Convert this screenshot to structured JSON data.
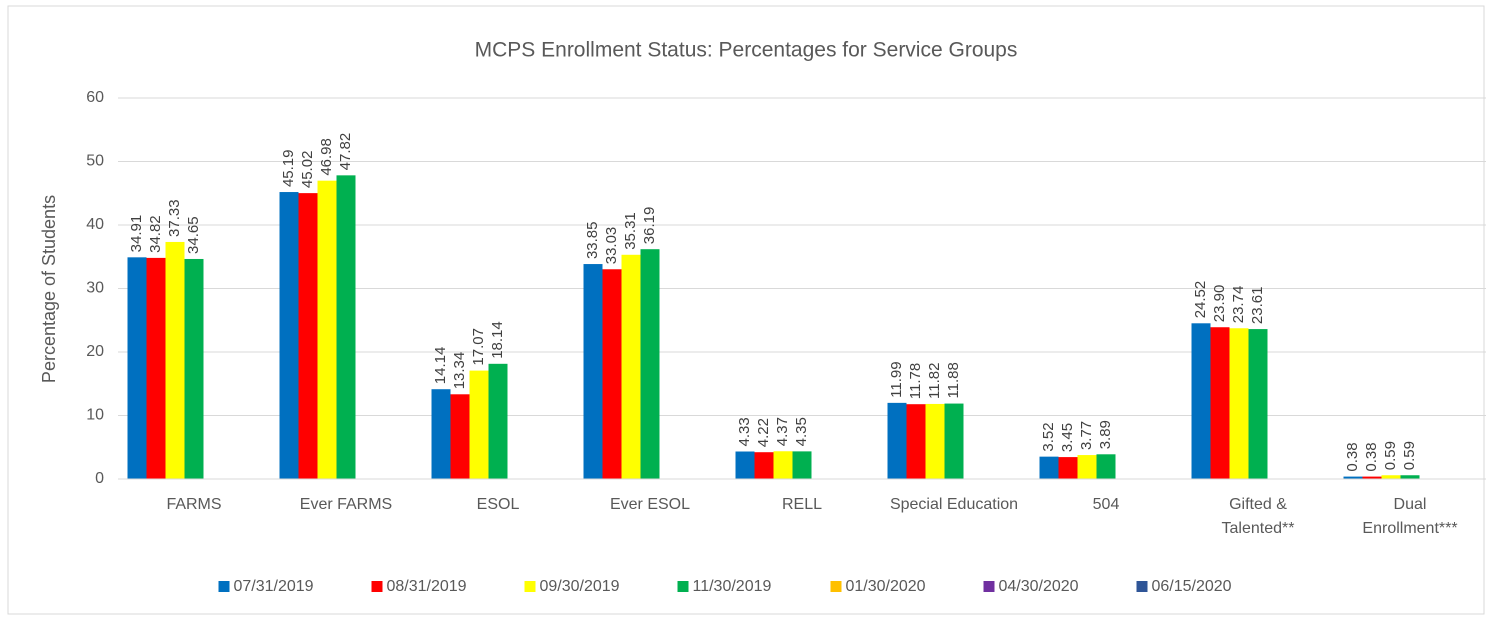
{
  "chart_data": {
    "type": "bar",
    "title": "MCPS Enrollment Status:  Percentages for Service Groups",
    "y_label": "Percentage of Students",
    "categories": [
      "FARMS",
      "Ever FARMS",
      "ESOL",
      "Ever ESOL",
      "RELL",
      "Special Education",
      "504",
      "Gifted & Talented**",
      "Dual Enrollment***"
    ],
    "series": [
      {
        "name": "07/31/2019",
        "color": "#0070c0",
        "values": [
          34.91,
          45.19,
          14.14,
          33.85,
          4.33,
          11.99,
          3.52,
          24.52,
          0.38
        ],
        "value_labels": [
          "34.91",
          "45.19",
          "14.14",
          "33.85",
          "4.33",
          "11.99",
          "3.52",
          "24.52",
          "0.38"
        ]
      },
      {
        "name": "08/31/2019",
        "color": "#ff0000",
        "values": [
          34.82,
          45.02,
          13.34,
          33.03,
          4.22,
          11.78,
          3.45,
          23.9,
          0.38
        ],
        "value_labels": [
          "34.82",
          "45.02",
          "13.34",
          "33.03",
          "4.22",
          "11.78",
          "3.45",
          "23.90",
          "0.38"
        ]
      },
      {
        "name": "09/30/2019",
        "color": "#ffff00",
        "values": [
          37.33,
          46.98,
          17.07,
          35.31,
          4.37,
          11.82,
          3.77,
          23.74,
          0.59
        ],
        "value_labels": [
          "37.33",
          "46.98",
          "17.07",
          "35.31",
          "4.37",
          "11.82",
          "3.77",
          "23.74",
          "0.59"
        ]
      },
      {
        "name": "11/30/2019",
        "color": "#00b050",
        "values": [
          34.65,
          47.82,
          18.14,
          36.19,
          4.35,
          11.88,
          3.89,
          23.61,
          0.59
        ],
        "value_labels": [
          "34.65",
          "47.82",
          "18.14",
          "36.19",
          "4.35",
          "11.88",
          "3.89",
          "23.61",
          "0.59"
        ]
      },
      {
        "name": "01/30/2020",
        "color": "#ffc000",
        "values": [
          null,
          null,
          null,
          null,
          null,
          null,
          null,
          null,
          null
        ]
      },
      {
        "name": "04/30/2020",
        "color": "#7030a0",
        "values": [
          null,
          null,
          null,
          null,
          null,
          null,
          null,
          null,
          null
        ]
      },
      {
        "name": "06/15/2020",
        "color": "#2f5597",
        "values": [
          null,
          null,
          null,
          null,
          null,
          null,
          null,
          null,
          null
        ]
      }
    ],
    "ylim": [
      0,
      60
    ],
    "yticks": [
      0,
      10,
      20,
      30,
      40,
      50,
      60
    ],
    "grid": true,
    "legend": "bottom"
  }
}
